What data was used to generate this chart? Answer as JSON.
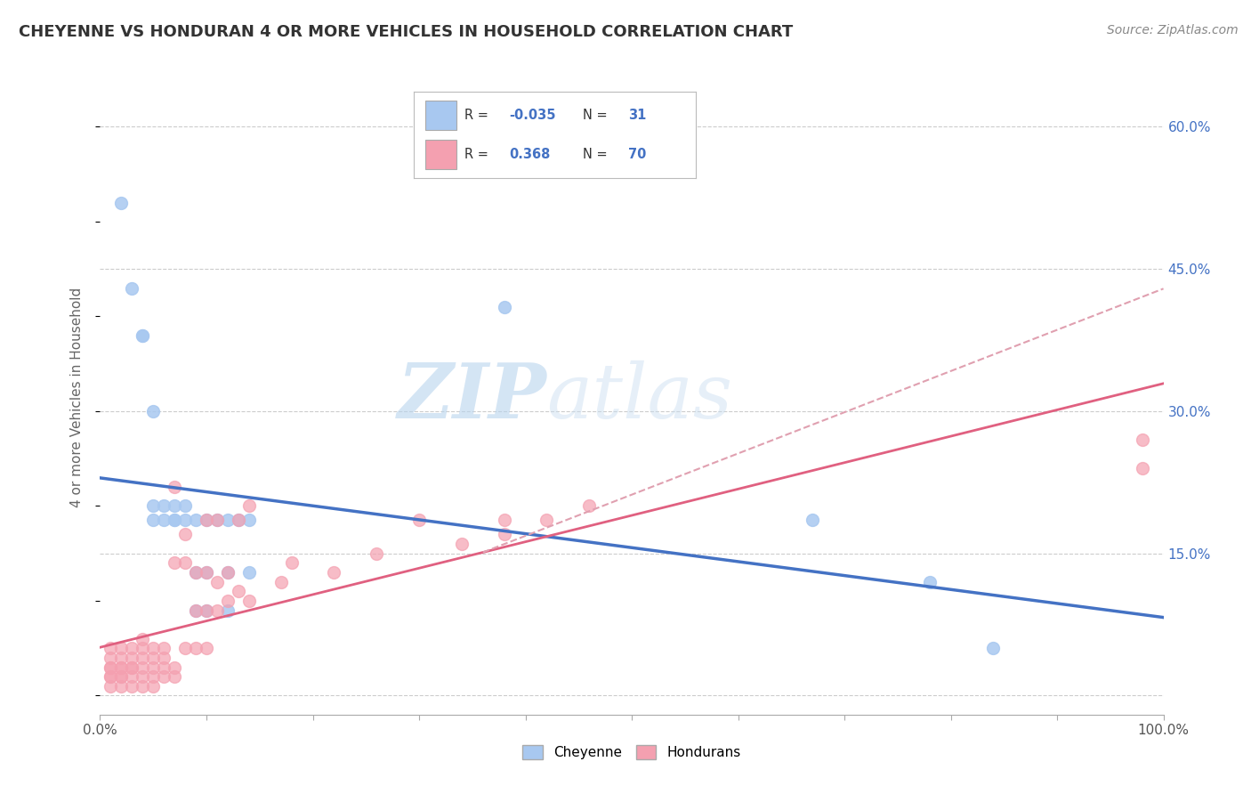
{
  "title": "CHEYENNE VS HONDURAN 4 OR MORE VEHICLES IN HOUSEHOLD CORRELATION CHART",
  "source": "Source: ZipAtlas.com",
  "ylabel": "4 or more Vehicles in Household",
  "xlim": [
    0,
    1.0
  ],
  "ylim": [
    -0.02,
    0.65
  ],
  "y_ticks_right": [
    0.15,
    0.3,
    0.45,
    0.6
  ],
  "y_tick_labels_right": [
    "15.0%",
    "30.0%",
    "45.0%",
    "60.0%"
  ],
  "cheyenne_color": "#a8c8f0",
  "honduran_color": "#f4a0b0",
  "cheyenne_line_color": "#4472c4",
  "honduran_line_color": "#e06080",
  "honduran_dashed_color": "#e0a0b0",
  "R_cheyenne": -0.035,
  "N_cheyenne": 31,
  "R_honduran": 0.368,
  "N_honduran": 70,
  "watermark_zip": "ZIP",
  "watermark_atlas": "atlas",
  "background_color": "#ffffff",
  "grid_color": "#cccccc",
  "cheyenne_points_x": [
    0.02,
    0.03,
    0.04,
    0.04,
    0.05,
    0.05,
    0.05,
    0.06,
    0.06,
    0.07,
    0.07,
    0.07,
    0.08,
    0.08,
    0.09,
    0.09,
    0.09,
    0.1,
    0.1,
    0.1,
    0.11,
    0.12,
    0.12,
    0.12,
    0.13,
    0.14,
    0.14,
    0.38,
    0.67,
    0.78,
    0.84
  ],
  "cheyenne_points_y": [
    0.52,
    0.43,
    0.38,
    0.38,
    0.3,
    0.2,
    0.185,
    0.185,
    0.2,
    0.185,
    0.185,
    0.2,
    0.185,
    0.2,
    0.185,
    0.13,
    0.09,
    0.185,
    0.13,
    0.09,
    0.185,
    0.185,
    0.13,
    0.09,
    0.185,
    0.185,
    0.13,
    0.41,
    0.185,
    0.12,
    0.05
  ],
  "honduran_points_x": [
    0.01,
    0.01,
    0.01,
    0.01,
    0.01,
    0.01,
    0.01,
    0.02,
    0.02,
    0.02,
    0.02,
    0.02,
    0.02,
    0.02,
    0.03,
    0.03,
    0.03,
    0.03,
    0.03,
    0.03,
    0.04,
    0.04,
    0.04,
    0.04,
    0.04,
    0.04,
    0.05,
    0.05,
    0.05,
    0.05,
    0.05,
    0.06,
    0.06,
    0.06,
    0.06,
    0.07,
    0.07,
    0.07,
    0.07,
    0.08,
    0.08,
    0.08,
    0.09,
    0.09,
    0.09,
    0.1,
    0.1,
    0.1,
    0.1,
    0.11,
    0.11,
    0.11,
    0.12,
    0.12,
    0.13,
    0.13,
    0.14,
    0.14,
    0.17,
    0.18,
    0.22,
    0.26,
    0.3,
    0.34,
    0.38,
    0.38,
    0.42,
    0.46,
    0.98,
    0.98
  ],
  "honduran_points_y": [
    0.01,
    0.02,
    0.02,
    0.03,
    0.03,
    0.04,
    0.05,
    0.01,
    0.02,
    0.02,
    0.03,
    0.03,
    0.04,
    0.05,
    0.01,
    0.02,
    0.03,
    0.03,
    0.04,
    0.05,
    0.01,
    0.02,
    0.03,
    0.04,
    0.05,
    0.06,
    0.01,
    0.02,
    0.03,
    0.04,
    0.05,
    0.02,
    0.03,
    0.04,
    0.05,
    0.02,
    0.03,
    0.14,
    0.22,
    0.05,
    0.14,
    0.17,
    0.05,
    0.09,
    0.13,
    0.05,
    0.09,
    0.13,
    0.185,
    0.09,
    0.12,
    0.185,
    0.1,
    0.13,
    0.11,
    0.185,
    0.1,
    0.2,
    0.12,
    0.14,
    0.13,
    0.15,
    0.185,
    0.16,
    0.17,
    0.185,
    0.185,
    0.2,
    0.24,
    0.27
  ]
}
